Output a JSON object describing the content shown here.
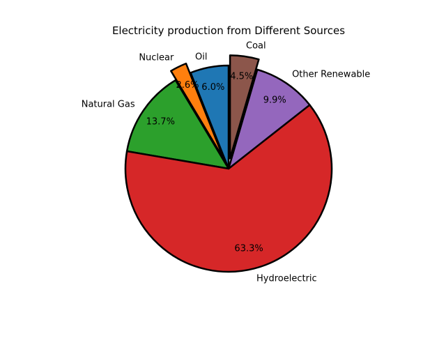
{
  "chart_data": {
    "type": "pie",
    "title": "Electricity production from Different Sources",
    "slices": [
      {
        "label": "Oil",
        "value": 6.0,
        "pct_label": "6.0%",
        "color": "#1f77b4",
        "exploded": false
      },
      {
        "label": "Nuclear",
        "value": 2.6,
        "pct_label": "2.6%",
        "color": "#ff7f0e",
        "exploded": true
      },
      {
        "label": "Natural Gas",
        "value": 13.7,
        "pct_label": "13.7%",
        "color": "#2ca02c",
        "exploded": false
      },
      {
        "label": "Hydroelectric",
        "value": 63.3,
        "pct_label": "63.3%",
        "color": "#d62728",
        "exploded": false
      },
      {
        "label": "Other Renewable",
        "value": 9.9,
        "pct_label": "9.9%",
        "color": "#9467bd",
        "exploded": false
      },
      {
        "label": "Coal",
        "value": 4.5,
        "pct_label": "4.5%",
        "color": "#8c564b",
        "exploded": true
      }
    ],
    "start_angle_deg": 90,
    "direction": "counterclockwise",
    "edge_color": "#000000",
    "legend": "none"
  }
}
